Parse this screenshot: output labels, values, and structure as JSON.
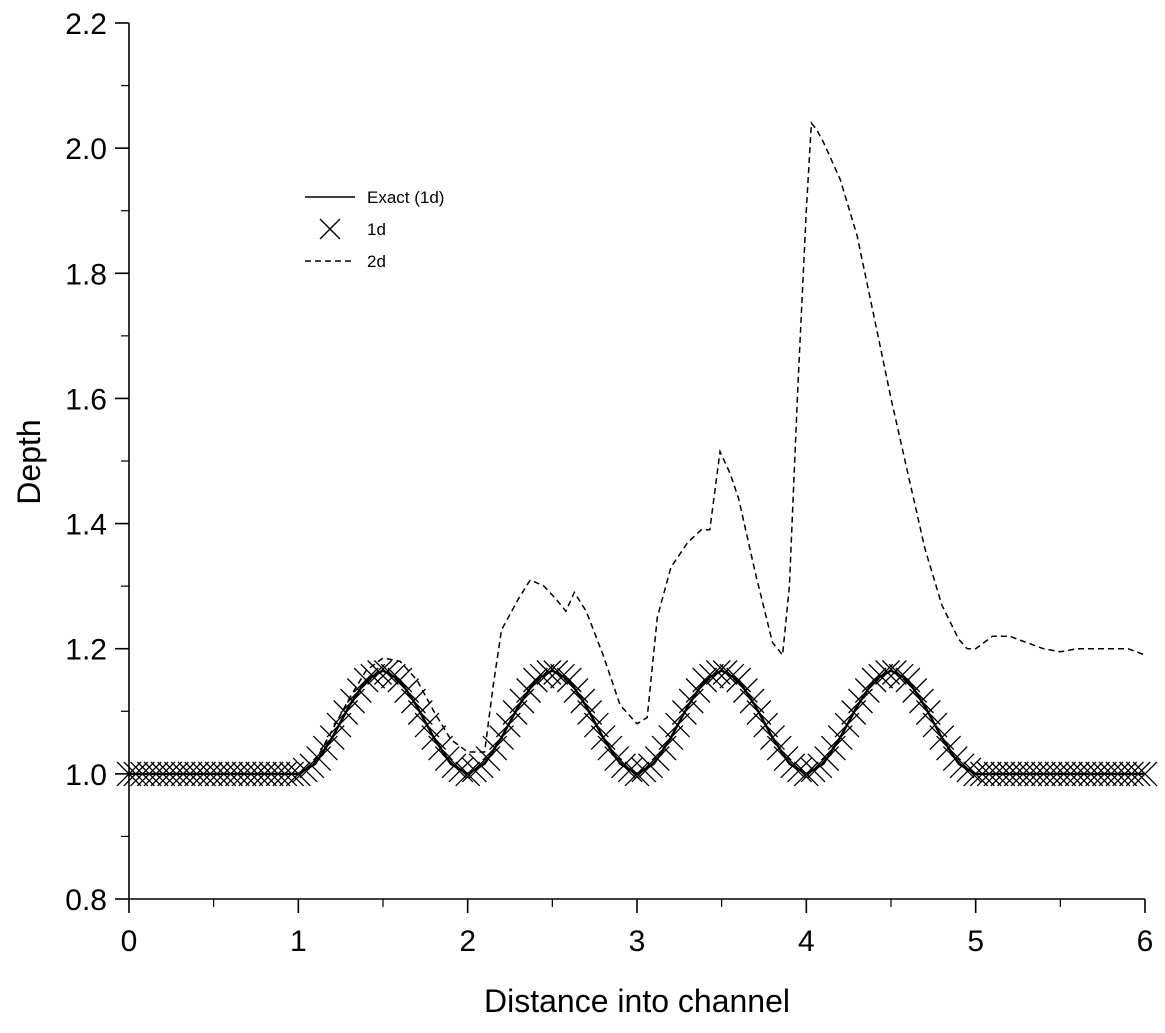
{
  "chart_data": {
    "type": "line",
    "title": "",
    "xlabel": "Distance into channel",
    "ylabel": "Depth",
    "xlim": [
      0,
      6
    ],
    "ylim": [
      0.8,
      2.2
    ],
    "x_ticks": [
      "0",
      "1",
      "2",
      "3",
      "4",
      "5",
      "6"
    ],
    "y_ticks": [
      "0.8",
      "1.0",
      "1.2",
      "1.4",
      "1.6",
      "1.8",
      "2.0",
      "2.2"
    ],
    "grid": false,
    "legend_position": "top-left",
    "series": [
      {
        "name": "Exact (1d)",
        "style": "solid",
        "color": "#000000",
        "x": [
          0,
          1,
          1.1,
          1.2,
          1.3,
          1.4,
          1.5,
          1.6,
          1.7,
          1.8,
          1.9,
          2.0,
          2.1,
          2.2,
          2.3,
          2.4,
          2.5,
          2.6,
          2.7,
          2.8,
          2.9,
          3.0,
          3.1,
          3.2,
          3.3,
          3.4,
          3.5,
          3.6,
          3.7,
          3.8,
          3.9,
          4.0,
          4.1,
          4.2,
          4.3,
          4.4,
          4.5,
          4.6,
          4.7,
          4.8,
          4.9,
          5.0,
          6.0
        ],
        "y": [
          1.0,
          1.0,
          1.016,
          1.058,
          1.108,
          1.15,
          1.165,
          1.15,
          1.108,
          1.058,
          1.016,
          1.0,
          1.016,
          1.058,
          1.108,
          1.15,
          1.165,
          1.15,
          1.108,
          1.058,
          1.016,
          1.0,
          1.016,
          1.058,
          1.108,
          1.15,
          1.165,
          1.15,
          1.108,
          1.058,
          1.016,
          1.0,
          1.016,
          1.058,
          1.108,
          1.15,
          1.165,
          1.15,
          1.108,
          1.058,
          1.016,
          1.0,
          1.0
        ]
      },
      {
        "name": "1d",
        "style": "x-marker",
        "color": "#000000",
        "marker_spacing": 0.04
      },
      {
        "name": "2d",
        "style": "dashed",
        "color": "#000000",
        "x": [
          1.0,
          1.1,
          1.2,
          1.3,
          1.4,
          1.5,
          1.6,
          1.7,
          1.8,
          1.9,
          2.0,
          2.1,
          2.15,
          2.2,
          2.3,
          2.37,
          2.45,
          2.52,
          2.58,
          2.63,
          2.7,
          2.8,
          2.9,
          3.0,
          3.06,
          3.12,
          3.2,
          3.3,
          3.38,
          3.43,
          3.49,
          3.55,
          3.6,
          3.7,
          3.8,
          3.86,
          3.9,
          3.95,
          4.0,
          4.03,
          4.06,
          4.1,
          4.2,
          4.3,
          4.4,
          4.5,
          4.6,
          4.7,
          4.8,
          4.9,
          4.95,
          5.0,
          5.05,
          5.1,
          5.2,
          5.3,
          5.4,
          5.5,
          5.6,
          5.7,
          5.8,
          5.9,
          6.0
        ],
        "y": [
          1.0,
          1.02,
          1.07,
          1.12,
          1.165,
          1.185,
          1.18,
          1.15,
          1.1,
          1.055,
          1.035,
          1.035,
          1.14,
          1.23,
          1.28,
          1.31,
          1.3,
          1.28,
          1.26,
          1.29,
          1.26,
          1.19,
          1.11,
          1.08,
          1.09,
          1.25,
          1.33,
          1.37,
          1.39,
          1.39,
          1.515,
          1.48,
          1.44,
          1.32,
          1.21,
          1.19,
          1.3,
          1.62,
          1.9,
          2.04,
          2.03,
          2.01,
          1.95,
          1.86,
          1.73,
          1.6,
          1.48,
          1.36,
          1.27,
          1.215,
          1.2,
          1.2,
          1.21,
          1.22,
          1.22,
          1.21,
          1.2,
          1.195,
          1.2,
          1.2,
          1.2,
          1.2,
          1.19
        ]
      }
    ]
  }
}
